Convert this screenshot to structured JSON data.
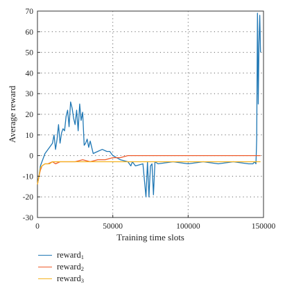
{
  "chart_data": {
    "type": "line",
    "xlabel": "Training time slots",
    "ylabel": "Average reward",
    "xlim": [
      0,
      150000
    ],
    "ylim": [
      -30,
      70
    ],
    "xticks": [
      0,
      50000,
      100000,
      150000
    ],
    "xtick_labels": [
      "0",
      "50000",
      "100000",
      "150000"
    ],
    "yticks": [
      -30,
      -20,
      -10,
      0,
      10,
      20,
      30,
      40,
      50,
      60,
      70
    ],
    "ytick_labels": [
      "-30",
      "-20",
      "-10",
      "0",
      "10",
      "20",
      "30",
      "40",
      "50",
      "60",
      "70"
    ],
    "grid": "dotted",
    "legend_position": "bottom-left, below plot",
    "series": [
      {
        "name": "reward",
        "subscript": "1",
        "color": "#1f77b4",
        "x": [
          0,
          1000,
          2000,
          3000,
          5000,
          8000,
          10000,
          11000,
          12000,
          13000,
          14000,
          15000,
          16000,
          17000,
          18000,
          19000,
          20000,
          21000,
          22000,
          23000,
          24000,
          25000,
          26000,
          27000,
          28000,
          29000,
          30000,
          31000,
          32000,
          33000,
          34000,
          35000,
          37000,
          40000,
          43000,
          46000,
          48000,
          50000,
          55000,
          60000,
          62000,
          63000,
          65000,
          70000,
          72000,
          73000,
          74000,
          75000,
          76000,
          77000,
          78000,
          80000,
          90000,
          100000,
          110000,
          120000,
          130000,
          140000,
          143000,
          144000,
          145000,
          145500,
          146000,
          146500,
          147000,
          147500,
          148000
        ],
        "y": [
          -14,
          -10,
          -5,
          -3,
          1,
          4,
          6,
          10,
          3,
          8,
          15,
          6,
          11,
          13,
          12,
          19,
          22,
          14,
          26,
          23,
          18,
          15,
          22,
          12,
          25,
          17,
          21,
          5,
          6,
          8,
          4,
          7,
          1,
          2,
          3,
          2,
          2,
          0,
          -2,
          -3,
          -5,
          -3,
          -5,
          -4,
          -20,
          -3,
          -20,
          -5,
          -4,
          -19,
          -3,
          -4,
          -3,
          -4,
          -3,
          -4,
          -3,
          -4,
          -4,
          -3,
          -4,
          8,
          69,
          25,
          55,
          68,
          50
        ]
      },
      {
        "name": "reward",
        "subscript": "2",
        "color": "#ee5a2a",
        "x": [
          0,
          1000,
          2000,
          3000,
          5000,
          7000,
          10000,
          12000,
          15000,
          20000,
          25000,
          30000,
          35000,
          40000,
          45000,
          50000,
          55000,
          60000,
          65000,
          70000,
          80000,
          90000,
          100000,
          110000,
          120000,
          130000,
          140000,
          145000,
          147000,
          148000
        ],
        "y": [
          -14,
          -10,
          -7,
          -5,
          -4,
          -4,
          -3,
          -4,
          -3,
          -3,
          -3,
          -2,
          -3,
          -2,
          -2,
          -1,
          -1,
          0,
          0,
          0,
          0,
          0,
          0,
          0,
          0,
          0,
          0,
          0,
          0,
          0
        ]
      },
      {
        "name": "reward",
        "subscript": "3",
        "color": "#f5b21e",
        "x": [
          0,
          1000,
          2000,
          3000,
          5000,
          8000,
          10000,
          15000,
          20000,
          25000,
          30000,
          40000,
          50000,
          55000,
          60000,
          70000,
          80000,
          90000,
          100000,
          110000,
          120000,
          130000,
          140000,
          145000,
          148000
        ],
        "y": [
          -14,
          -10,
          -6,
          -5,
          -4,
          -4,
          -3,
          -3,
          -3,
          -3,
          -3,
          -3,
          -3,
          -3,
          -3,
          -3,
          -3,
          -3,
          -3,
          -3,
          -3,
          -3,
          -3,
          -3,
          -3
        ]
      }
    ]
  }
}
